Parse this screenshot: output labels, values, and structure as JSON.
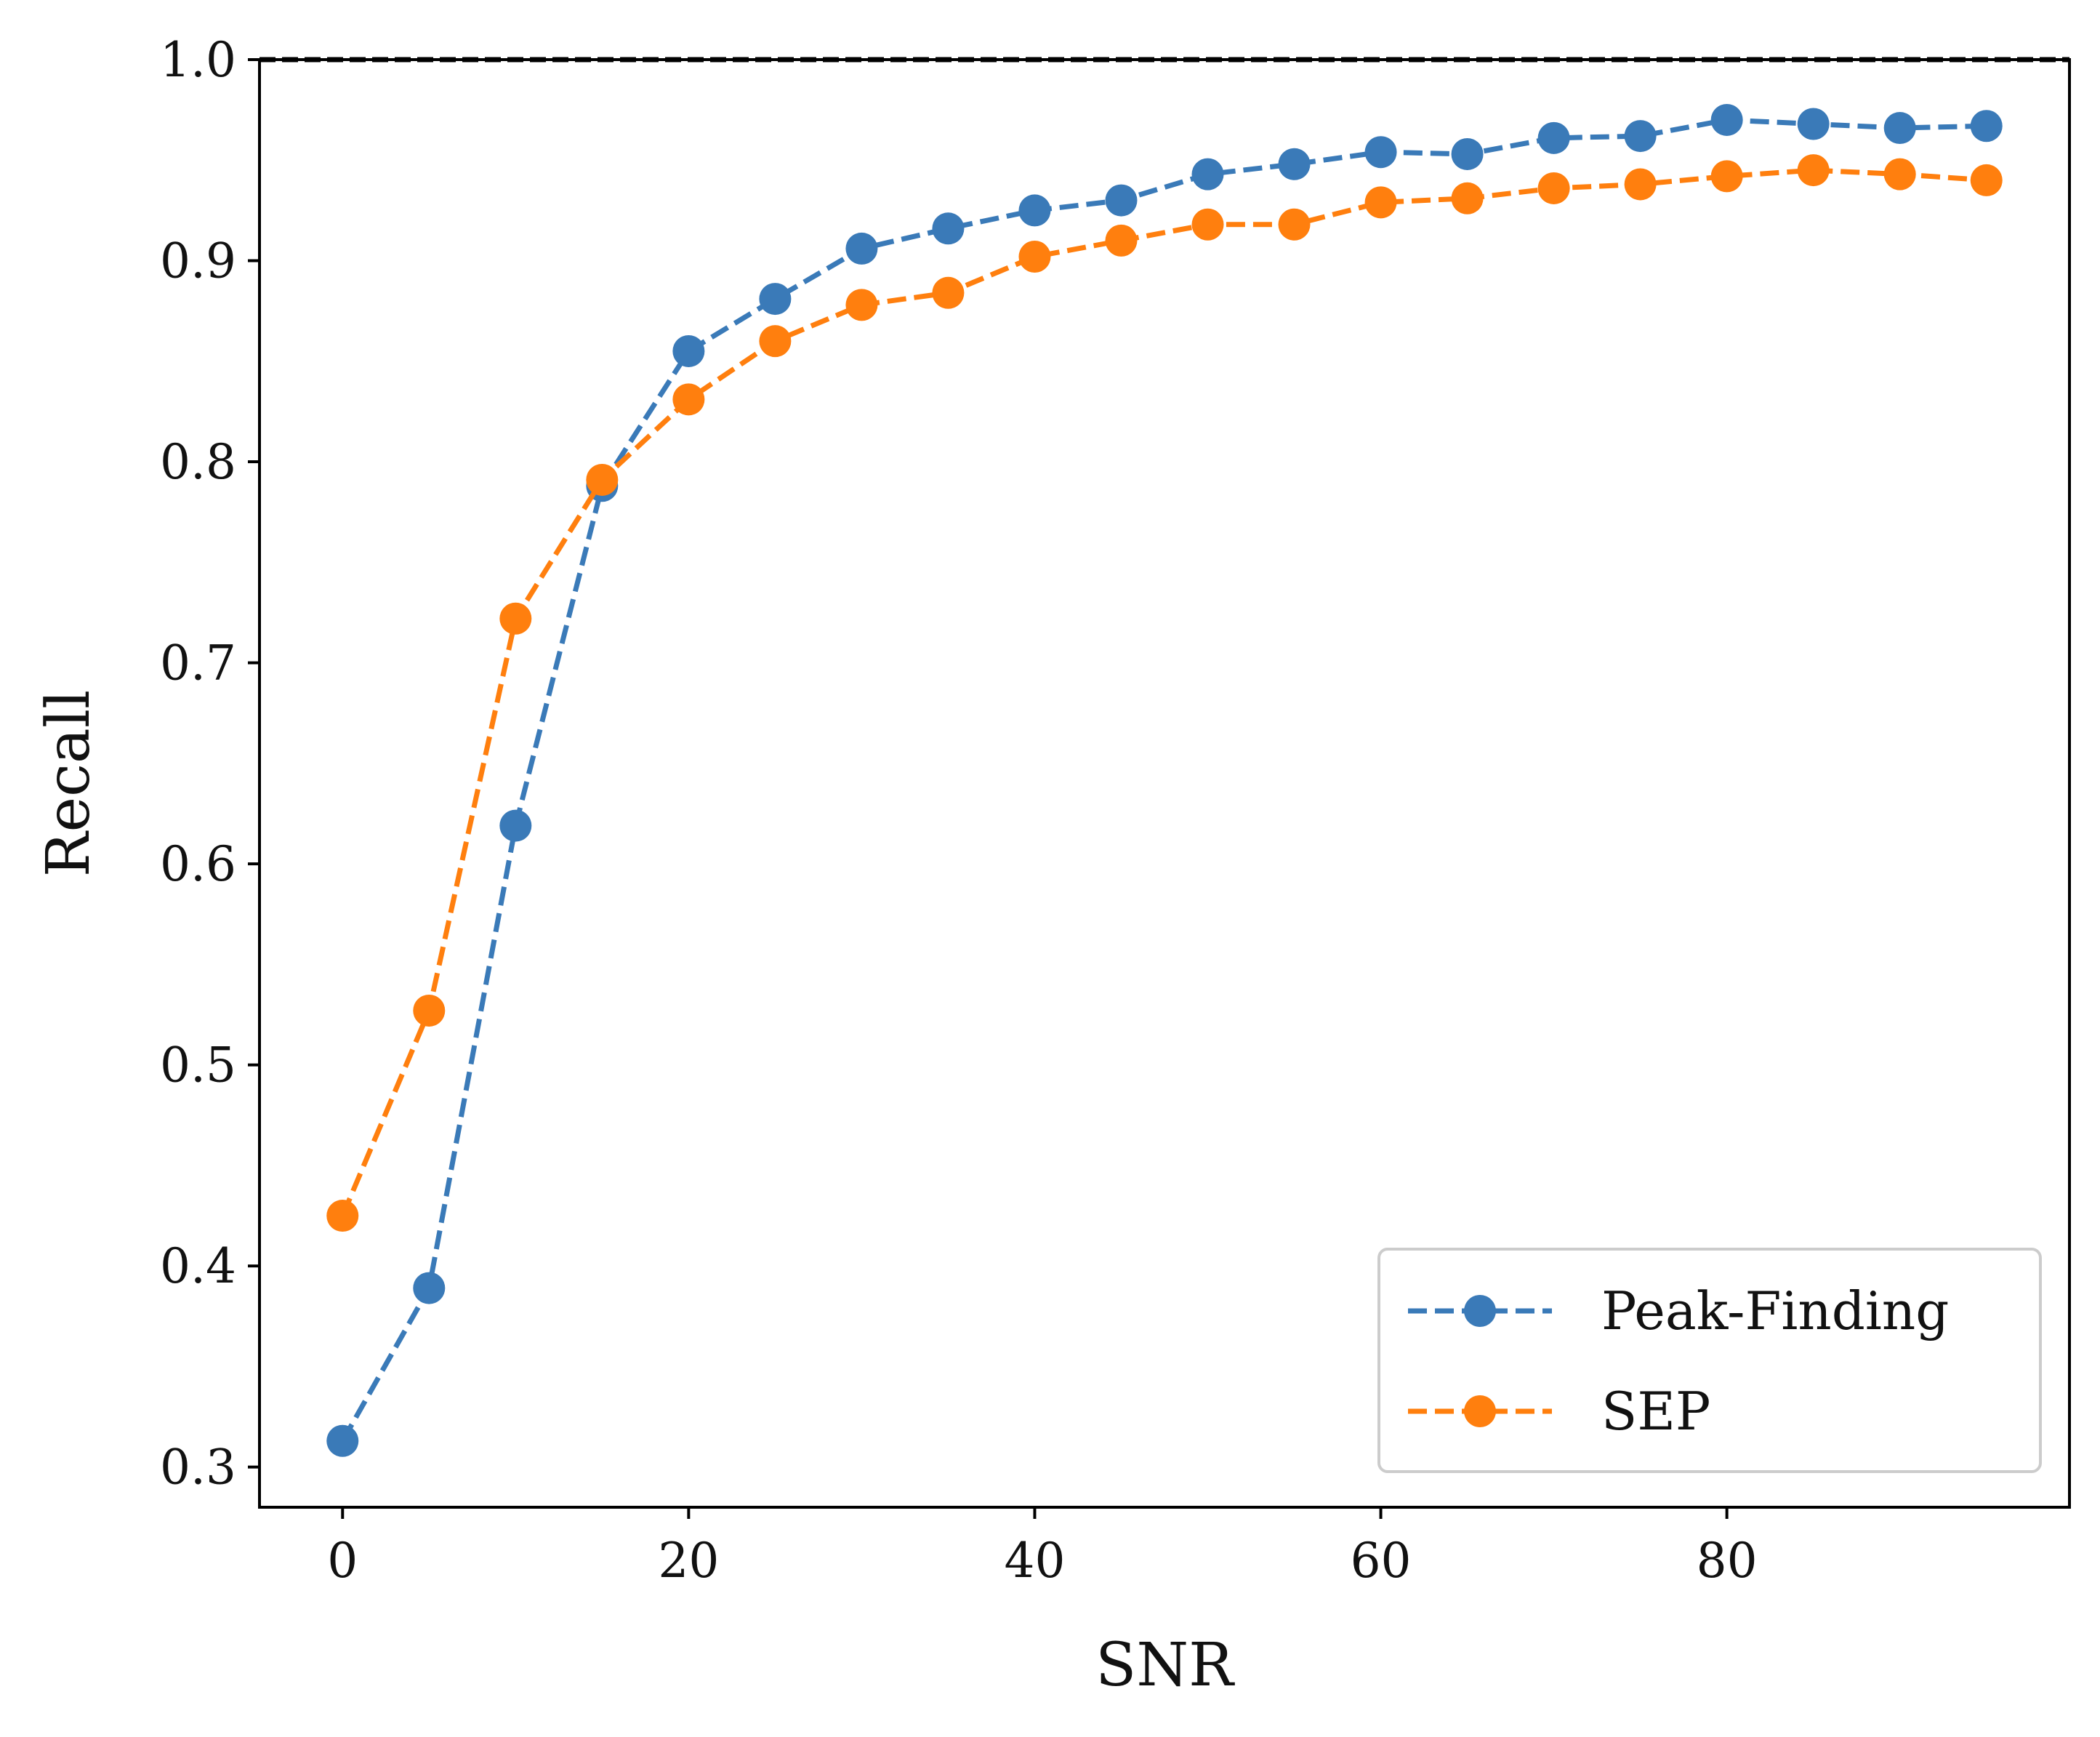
{
  "chart_data": {
    "type": "line",
    "xlabel": "SNR",
    "ylabel": "Recall",
    "xlim": [
      -4.8,
      99.8
    ],
    "ylim": [
      0.28,
      1.0
    ],
    "xticks": [
      0,
      20,
      40,
      60,
      80
    ],
    "yticks": [
      0.3,
      0.4,
      0.5,
      0.6,
      0.7,
      0.8,
      0.9,
      1.0
    ],
    "xtick_labels": [
      "0",
      "20",
      "40",
      "60",
      "80"
    ],
    "ytick_labels": [
      "0.3",
      "0.4",
      "0.5",
      "0.6",
      "0.7",
      "0.8",
      "0.9",
      "1.0"
    ],
    "grid": false,
    "legend_position": "lower-right",
    "reference_line": {
      "y": 1.0,
      "style": "dashed",
      "color": "#000000"
    },
    "x": [
      0,
      5,
      10,
      15,
      20,
      25,
      30,
      35,
      40,
      45,
      50,
      55,
      60,
      65,
      70,
      75,
      80,
      85,
      90,
      95
    ],
    "series": [
      {
        "name": "Peak-Finding",
        "color": "#3a7ab8",
        "line_style": "dashed",
        "marker": "circle",
        "values": [
          0.313,
          0.389,
          0.619,
          0.788,
          0.855,
          0.881,
          0.906,
          0.916,
          0.925,
          0.93,
          0.943,
          0.948,
          0.954,
          0.953,
          0.961,
          0.962,
          0.97,
          0.968,
          0.966,
          0.967
        ]
      },
      {
        "name": "SEP",
        "color": "#ff7f0e",
        "line_style": "dashed",
        "marker": "circle",
        "values": [
          0.425,
          0.527,
          0.722,
          0.791,
          0.831,
          0.86,
          0.878,
          0.884,
          0.902,
          0.91,
          0.918,
          0.918,
          0.929,
          0.931,
          0.936,
          0.938,
          0.942,
          0.945,
          0.943,
          0.94
        ]
      }
    ]
  }
}
